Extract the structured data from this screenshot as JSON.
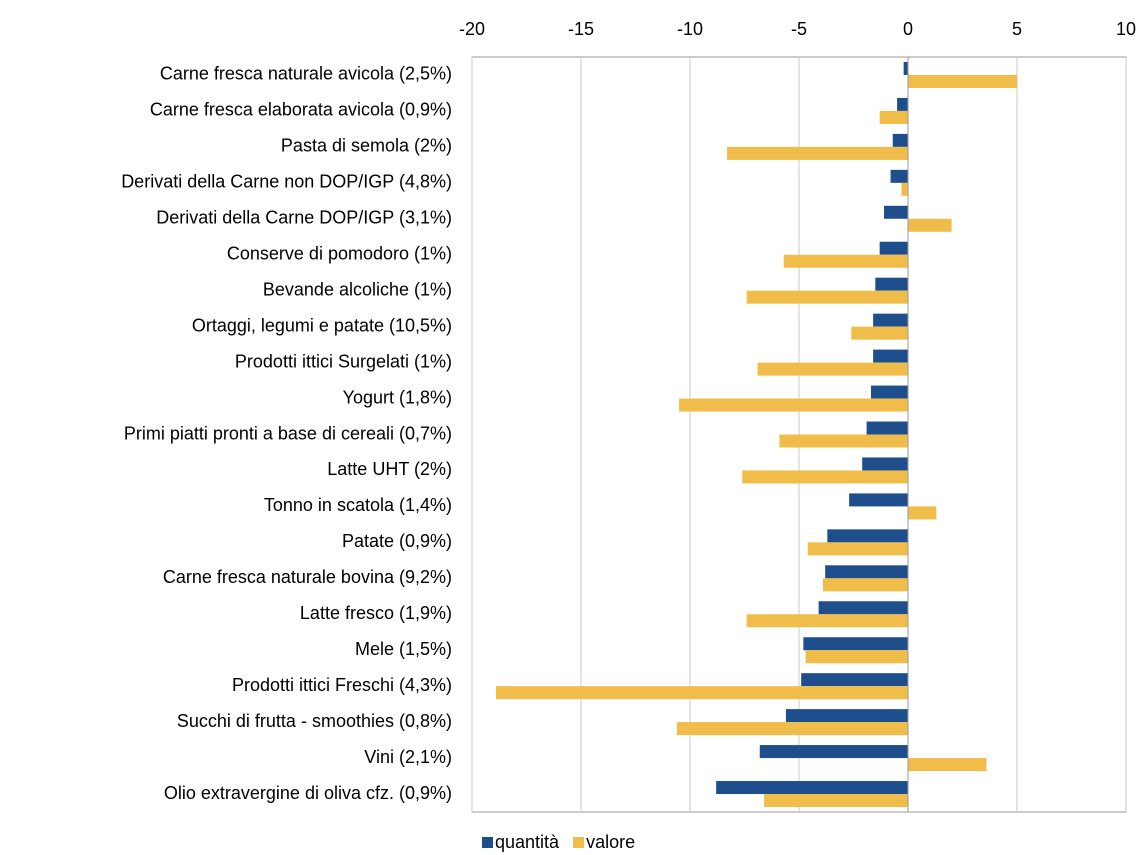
{
  "chart_data": {
    "type": "hbar_grouped",
    "categories": [
      "Carne fresca naturale avicola (2,5%)",
      "Carne fresca elaborata avicola (0,9%)",
      "Pasta di semola (2%)",
      "Derivati della Carne non DOP/IGP (4,8%)",
      "Derivati della Carne DOP/IGP (3,1%)",
      "Conserve di pomodoro (1%)",
      "Bevande alcoliche (1%)",
      "Ortaggi, legumi e patate (10,5%)",
      "Prodotti ittici Surgelati (1%)",
      "Yogurt (1,8%)",
      "Primi piatti pronti a base di cereali (0,7%)",
      "Latte UHT (2%)",
      "Tonno in scatola (1,4%)",
      "Patate (0,9%)",
      "Carne fresca naturale bovina (9,2%)",
      "Latte fresco (1,9%)",
      "Mele (1,5%)",
      "Prodotti ittici Freschi (4,3%)",
      "Succhi di frutta - smoothies (0,8%)",
      "Vini (2,1%)",
      "Olio extravergine di oliva cfz. (0,9%)"
    ],
    "series": [
      {
        "name": "quantità",
        "color": "#1f4e8c",
        "values": [
          -0.2,
          -0.5,
          -0.7,
          -0.8,
          -1.1,
          -1.3,
          -1.5,
          -1.6,
          -1.6,
          -1.7,
          -1.9,
          -2.1,
          -2.7,
          -3.7,
          -3.8,
          -4.1,
          -4.8,
          -4.9,
          -5.6,
          -6.8,
          -8.8
        ]
      },
      {
        "name": "valore",
        "color": "#f0bc4a",
        "values": [
          5.0,
          -1.3,
          -8.3,
          -0.3,
          2.0,
          -5.7,
          -7.4,
          -2.6,
          -6.9,
          -10.5,
          -5.9,
          -7.6,
          1.3,
          -4.6,
          -3.9,
          -7.4,
          -4.7,
          -18.9,
          -10.6,
          3.6,
          -6.6
        ]
      }
    ],
    "xlim": [
      -20,
      10
    ],
    "xticks": [
      -20,
      -15,
      -10,
      -5,
      0,
      5,
      10
    ],
    "grid": true,
    "legend": "bottom"
  }
}
